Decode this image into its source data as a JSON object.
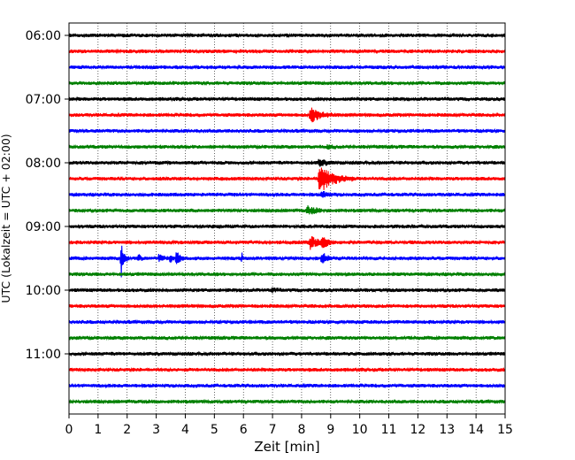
{
  "chart_data": {
    "type": "line",
    "title": "",
    "xlabel": "Zeit  [min]",
    "ylabel": "UTC (Lokalzeit = UTC + 02:00)",
    "xlim": [
      0,
      15
    ],
    "x_ticks": [
      0,
      1,
      2,
      3,
      4,
      5,
      6,
      7,
      8,
      9,
      10,
      11,
      12,
      13,
      14,
      15
    ],
    "x_tick_labels": [
      "0",
      "1",
      "2",
      "3",
      "4",
      "5",
      "6",
      "7",
      "8",
      "9",
      "10",
      "11",
      "12",
      "13",
      "14",
      "15"
    ],
    "y_tick_labels": [
      "06:00",
      "07:00",
      "08:00",
      "09:00",
      "10:00",
      "11:00"
    ],
    "grid": "vertical dotted",
    "trace_interval_min": 15,
    "colors": [
      "#000000",
      "#ff0000",
      "#0000ff",
      "#008000"
    ],
    "traces": [
      {
        "start": "06:00",
        "color": "#000000",
        "events": []
      },
      {
        "start": "06:15",
        "color": "#ff0000",
        "events": []
      },
      {
        "start": "06:30",
        "color": "#0000ff",
        "events": []
      },
      {
        "start": "06:45",
        "color": "#008000",
        "events": []
      },
      {
        "start": "07:00",
        "color": "#000000",
        "events": []
      },
      {
        "start": "07:15",
        "color": "#ff0000",
        "events": [
          {
            "t": 8.3,
            "amp": 0.65,
            "dur": 0.9
          }
        ]
      },
      {
        "start": "07:30",
        "color": "#0000ff",
        "events": []
      },
      {
        "start": "07:45",
        "color": "#008000",
        "events": [
          {
            "t": 8.9,
            "amp": 0.12,
            "dur": 0.4
          }
        ]
      },
      {
        "start": "08:00",
        "color": "#000000",
        "events": [
          {
            "t": 8.6,
            "amp": 0.25,
            "dur": 0.6
          }
        ]
      },
      {
        "start": "08:15",
        "color": "#ff0000",
        "events": [
          {
            "t": 8.6,
            "amp": 1.2,
            "dur": 1.2
          }
        ]
      },
      {
        "start": "08:30",
        "color": "#0000ff",
        "events": [
          {
            "t": 8.7,
            "amp": 0.2,
            "dur": 0.6
          }
        ]
      },
      {
        "start": "08:45",
        "color": "#008000",
        "events": [
          {
            "t": 8.2,
            "amp": 0.3,
            "dur": 0.8
          }
        ]
      },
      {
        "start": "09:00",
        "color": "#000000",
        "events": []
      },
      {
        "start": "09:15",
        "color": "#ff0000",
        "events": [
          {
            "t": 8.3,
            "amp": 0.5,
            "dur": 0.6
          },
          {
            "t": 8.7,
            "amp": 0.45,
            "dur": 0.5
          }
        ]
      },
      {
        "start": "09:30",
        "color": "#0000ff",
        "events": [
          {
            "t": 1.8,
            "amp": 1.4,
            "dur": 0.25
          },
          {
            "t": 2.4,
            "amp": 0.25,
            "dur": 0.2
          },
          {
            "t": 3.1,
            "amp": 0.35,
            "dur": 0.3
          },
          {
            "t": 3.5,
            "amp": 0.4,
            "dur": 0.15
          },
          {
            "t": 3.7,
            "amp": 0.6,
            "dur": 0.3
          },
          {
            "t": 5.95,
            "amp": 0.3,
            "dur": 0.05
          },
          {
            "t": 8.7,
            "amp": 0.5,
            "dur": 0.4
          }
        ]
      },
      {
        "start": "09:45",
        "color": "#008000",
        "events": []
      },
      {
        "start": "10:00",
        "color": "#000000",
        "events": [
          {
            "t": 7.0,
            "amp": 0.15,
            "dur": 0.3
          }
        ]
      },
      {
        "start": "10:15",
        "color": "#ff0000",
        "events": []
      },
      {
        "start": "10:30",
        "color": "#0000ff",
        "events": []
      },
      {
        "start": "10:45",
        "color": "#008000",
        "events": []
      },
      {
        "start": "11:00",
        "color": "#000000",
        "events": []
      },
      {
        "start": "11:15",
        "color": "#ff0000",
        "events": []
      },
      {
        "start": "11:30",
        "color": "#0000ff",
        "events": []
      },
      {
        "start": "11:45",
        "color": "#008000",
        "events": []
      }
    ]
  }
}
